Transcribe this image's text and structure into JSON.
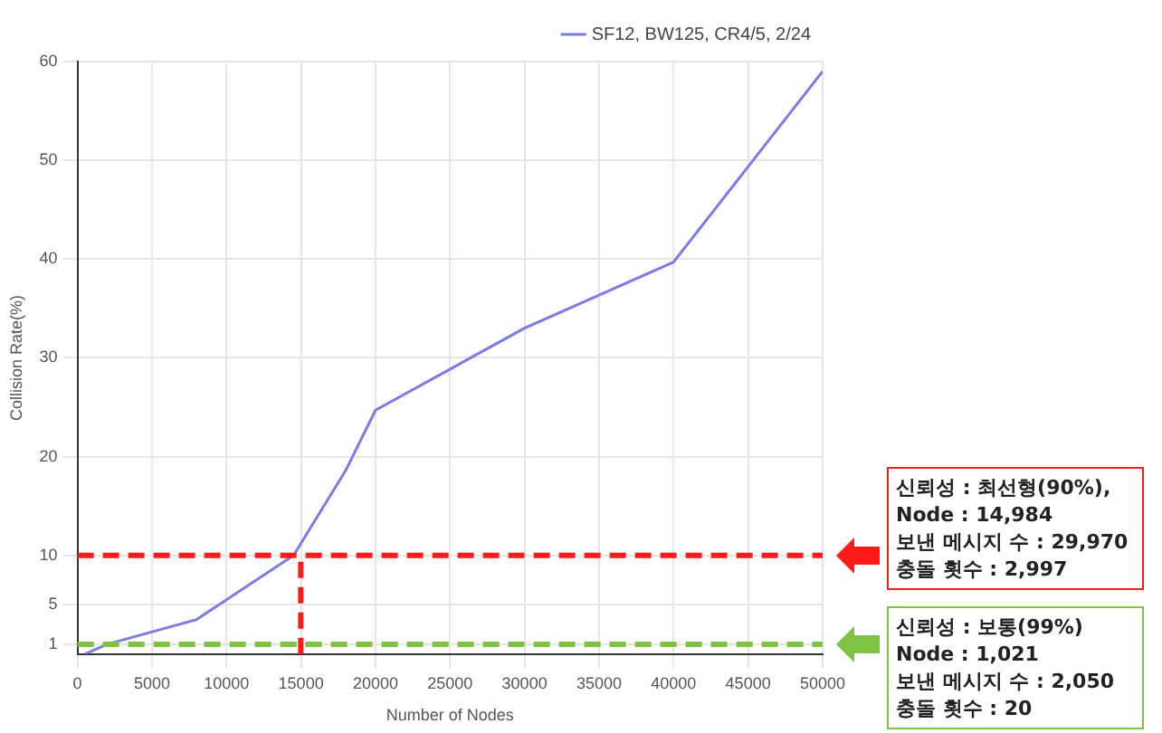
{
  "chart_data": {
    "type": "line",
    "xlabel": "Number of Nodes",
    "ylabel": "Collision Rate(%)",
    "x": [
      500,
      2000,
      8000,
      14500,
      18000,
      20000,
      30000,
      40000,
      50000
    ],
    "series": [
      {
        "name": "SF12, BW125, CR4/5, 2/24",
        "color": "#7b7be8",
        "values": [
          0,
          1,
          3.5,
          10,
          18.6,
          24.7,
          33,
          39.7,
          59
        ]
      }
    ],
    "xlim": [
      0,
      50000
    ],
    "xticks": [
      0,
      5000,
      10000,
      15000,
      20000,
      25000,
      30000,
      35000,
      40000,
      45000,
      50000
    ],
    "ylim": [
      0,
      60
    ],
    "yticks": [
      1,
      5,
      10,
      20,
      30,
      40,
      50,
      60
    ],
    "grid": true,
    "legend": "top right",
    "marker": "none",
    "ref_lines": [
      {
        "axis": "y",
        "value": 10,
        "color": "#ff1a1a",
        "line_style": "dashed"
      },
      {
        "axis": "y",
        "value": 1,
        "color": "#7dc242",
        "line_style": "dashed"
      },
      {
        "axis": "x",
        "value": 14984,
        "color": "#ff1a1a",
        "line_style": "dashed"
      }
    ],
    "annotations": [
      "신뢰성 : 최선형(90%),\nNode : 14,984\n보낸 메시지 수 : 29,970\n충돌 횟수 : 2,997",
      "신뢰성 : 보통(99%)\nNode : 1,021\n보낸 메시지 수 : 2,050\n충돌 횟수 : 20"
    ]
  }
}
